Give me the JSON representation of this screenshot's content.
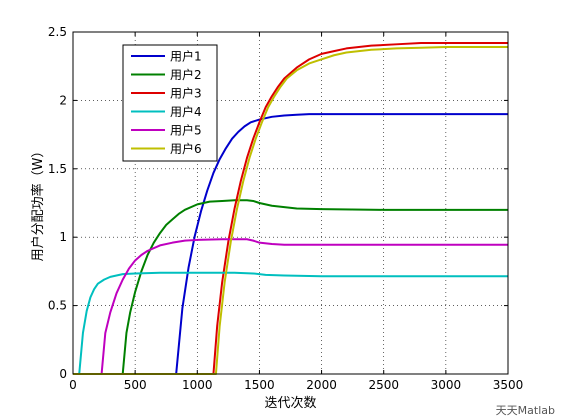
{
  "chart_data": {
    "type": "line",
    "xlabel": "迭代次数",
    "ylabel": "用户分配功率（W）",
    "xlim": [
      0,
      3500
    ],
    "ylim": [
      0,
      2.5
    ],
    "xticks": [
      0,
      500,
      1000,
      1500,
      2000,
      2500,
      3000,
      3500
    ],
    "yticks": [
      0,
      0.5,
      1,
      1.5,
      2,
      2.5
    ],
    "grid": true,
    "legend_position": "top-left",
    "series": [
      {
        "name": "用户1",
        "color": "#0000cc",
        "x": [
          830,
          880,
          930,
          980,
          1030,
          1080,
          1130,
          1180,
          1230,
          1280,
          1330,
          1380,
          1430,
          1500,
          1600,
          1700,
          1800,
          1900,
          2000,
          2200,
          2500,
          3000,
          3500
        ],
        "y": [
          0,
          0.48,
          0.78,
          1.01,
          1.19,
          1.34,
          1.47,
          1.57,
          1.65,
          1.72,
          1.77,
          1.81,
          1.84,
          1.86,
          1.88,
          1.89,
          1.895,
          1.9,
          1.9,
          1.9,
          1.9,
          1.9,
          1.9
        ]
      },
      {
        "name": "用户2",
        "color": "#008000",
        "x": [
          400,
          430,
          460,
          500,
          550,
          600,
          650,
          700,
          750,
          800,
          850,
          900,
          1000,
          1100,
          1200,
          1300,
          1400,
          1450,
          1500,
          1600,
          1700,
          1800,
          2000,
          2500,
          3000,
          3500
        ],
        "y": [
          0,
          0.3,
          0.45,
          0.6,
          0.75,
          0.87,
          0.96,
          1.03,
          1.09,
          1.13,
          1.17,
          1.2,
          1.24,
          1.26,
          1.265,
          1.27,
          1.27,
          1.265,
          1.25,
          1.23,
          1.22,
          1.21,
          1.205,
          1.2,
          1.2,
          1.2
        ]
      },
      {
        "name": "用户3",
        "color": "#dd0000",
        "x": [
          1130,
          1160,
          1200,
          1250,
          1300,
          1350,
          1400,
          1450,
          1500,
          1550,
          1600,
          1650,
          1700,
          1800,
          1900,
          2000,
          2100,
          2200,
          2400,
          2600,
          2800,
          3000,
          3200,
          3500
        ],
        "y": [
          0,
          0.35,
          0.67,
          0.97,
          1.21,
          1.41,
          1.58,
          1.72,
          1.84,
          1.95,
          2.03,
          2.1,
          2.16,
          2.24,
          2.3,
          2.34,
          2.36,
          2.38,
          2.4,
          2.41,
          2.42,
          2.42,
          2.42,
          2.42
        ]
      },
      {
        "name": "用户4",
        "color": "#00bfbf",
        "x": [
          50,
          80,
          110,
          140,
          170,
          200,
          250,
          300,
          350,
          400,
          500,
          700,
          1000,
          1300,
          1450,
          1550,
          1700,
          2000,
          2500,
          3000,
          3500
        ],
        "y": [
          0,
          0.3,
          0.46,
          0.56,
          0.62,
          0.66,
          0.69,
          0.71,
          0.72,
          0.73,
          0.735,
          0.74,
          0.74,
          0.74,
          0.735,
          0.725,
          0.72,
          0.715,
          0.715,
          0.715,
          0.715
        ]
      },
      {
        "name": "用户5",
        "color": "#bf00bf",
        "x": [
          230,
          260,
          300,
          350,
          400,
          450,
          500,
          550,
          600,
          700,
          800,
          900,
          1000,
          1200,
          1400,
          1450,
          1500,
          1600,
          1700,
          2000,
          2500,
          3000,
          3500
        ],
        "y": [
          0,
          0.3,
          0.45,
          0.59,
          0.69,
          0.77,
          0.83,
          0.87,
          0.9,
          0.94,
          0.96,
          0.975,
          0.98,
          0.985,
          0.985,
          0.975,
          0.96,
          0.95,
          0.945,
          0.945,
          0.945,
          0.945,
          0.945
        ]
      },
      {
        "name": "用户6",
        "color": "#bfbf00",
        "x": [
          1150,
          1180,
          1220,
          1270,
          1320,
          1370,
          1420,
          1470,
          1520,
          1570,
          1620,
          1670,
          1720,
          1800,
          1900,
          2000,
          2100,
          2200,
          2400,
          2600,
          2800,
          3000,
          3200,
          3500
        ],
        "y": [
          0,
          0.35,
          0.67,
          0.97,
          1.21,
          1.41,
          1.58,
          1.72,
          1.84,
          1.95,
          2.03,
          2.1,
          2.16,
          2.22,
          2.27,
          2.3,
          2.33,
          2.35,
          2.37,
          2.38,
          2.385,
          2.39,
          2.39,
          2.39
        ]
      }
    ]
  },
  "watermark": "天天Matlab"
}
